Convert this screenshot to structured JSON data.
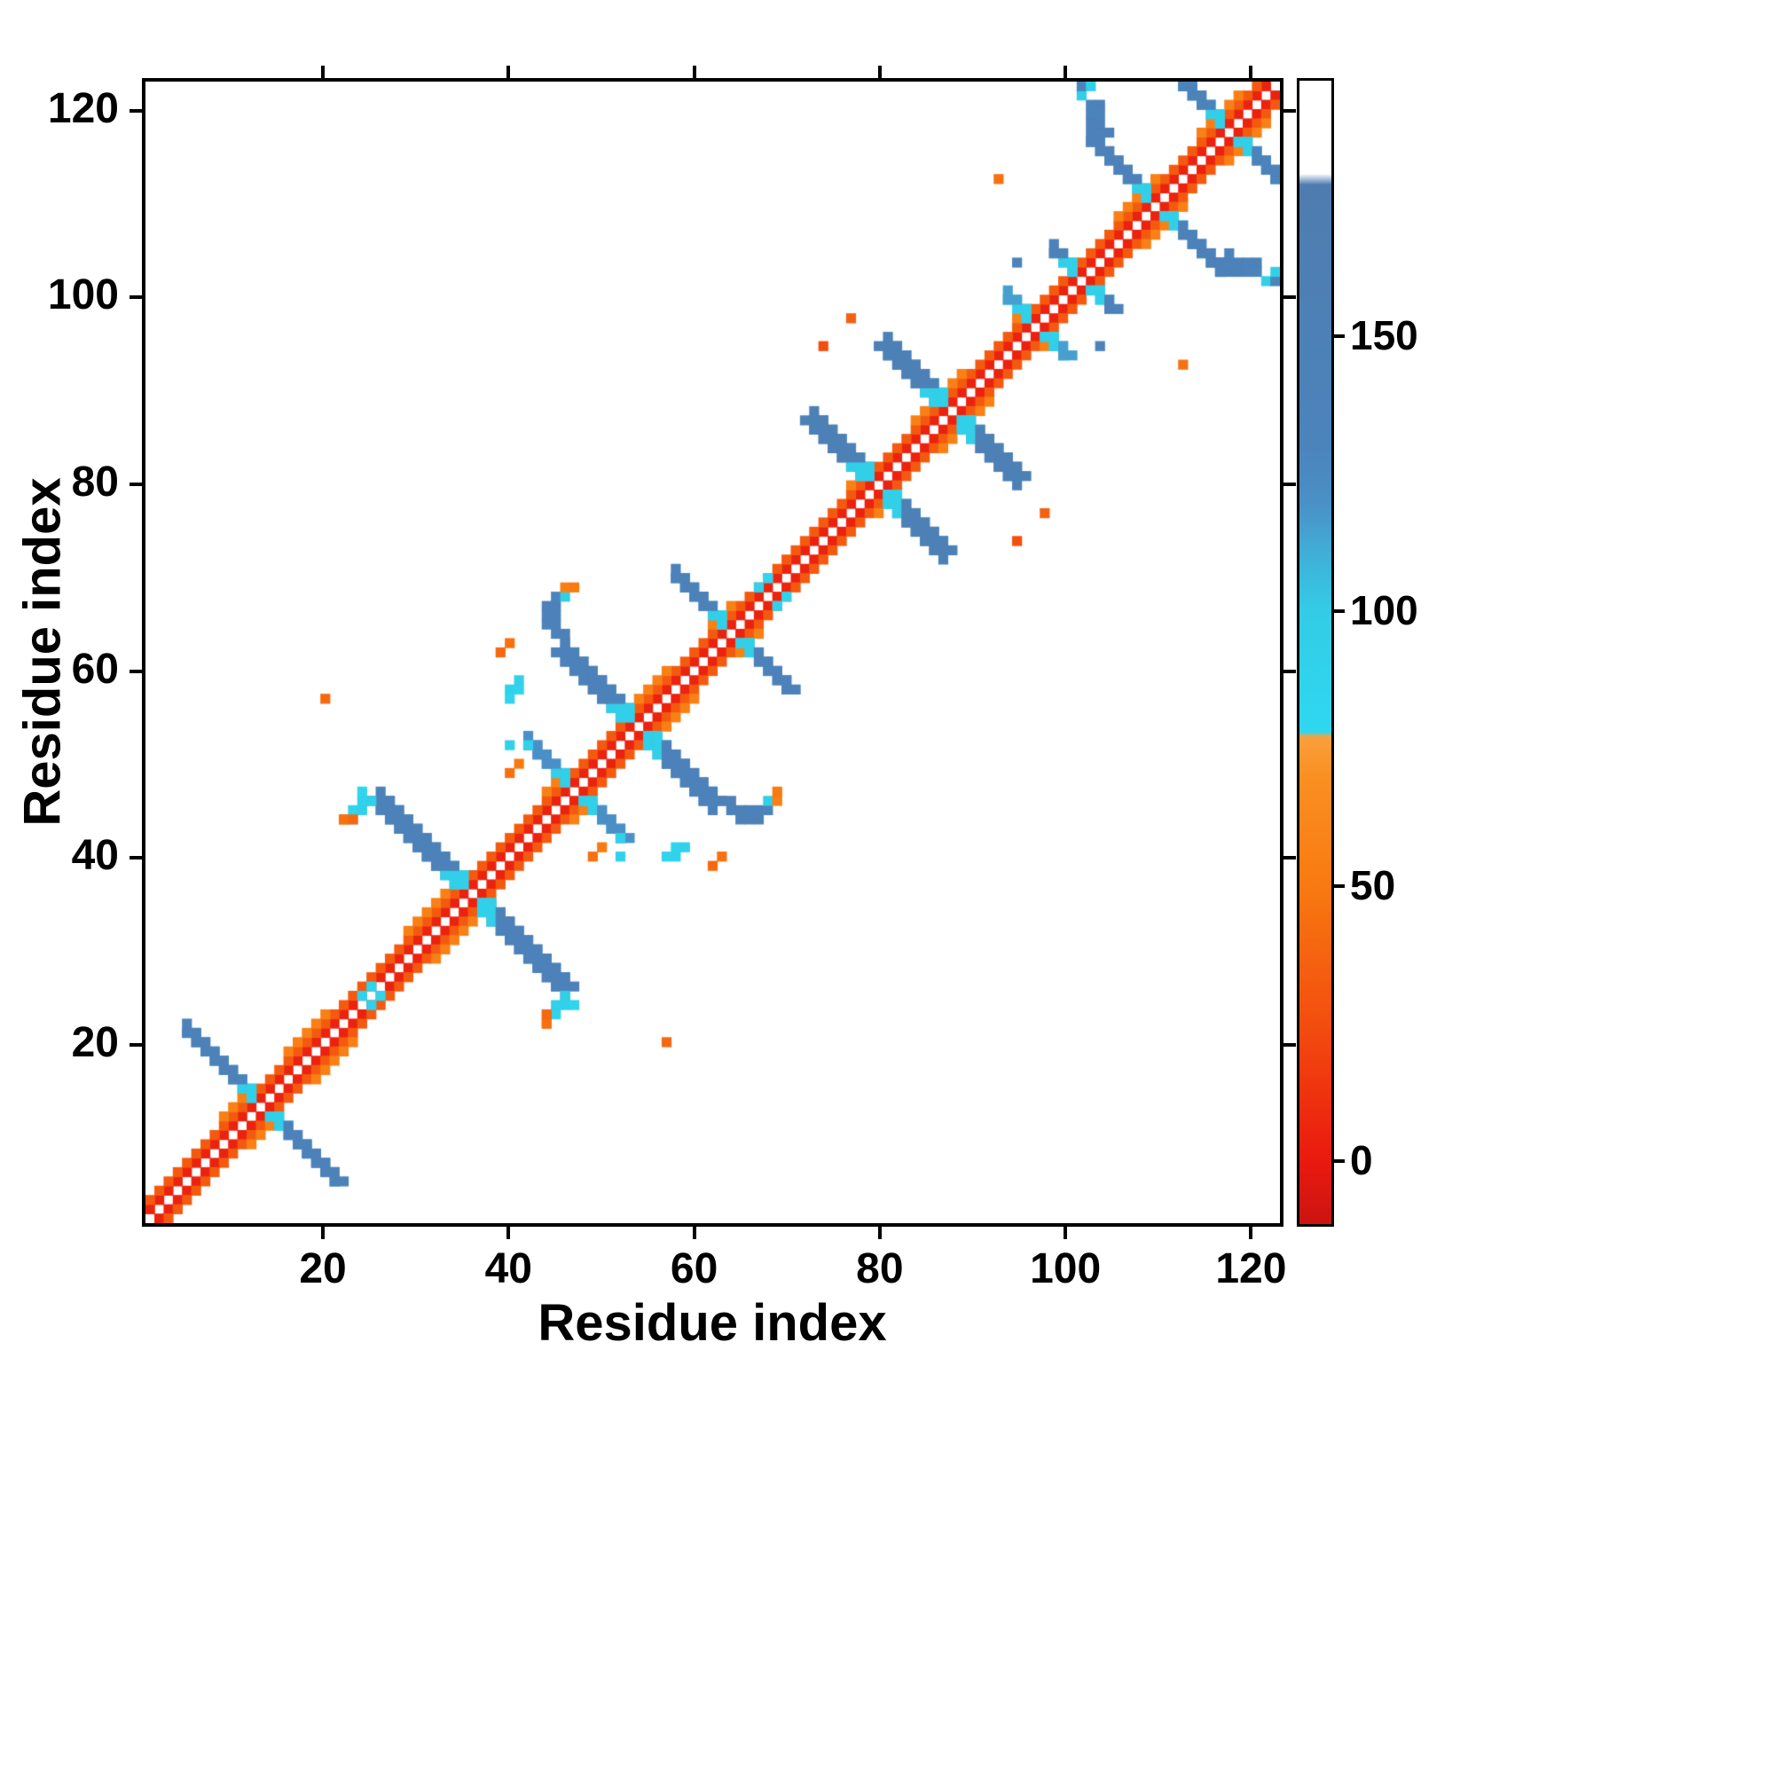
{
  "chart_data": {
    "type": "heatmap",
    "title": "",
    "xlabel": "Residue index",
    "ylabel": "Residue index",
    "x_range": [
      1,
      123
    ],
    "y_range": [
      1,
      123
    ],
    "x_ticks": [
      20,
      40,
      60,
      80,
      100,
      120
    ],
    "y_ticks": [
      20,
      40,
      60,
      80,
      100,
      120
    ],
    "grid": false,
    "legend": "colorbar-right",
    "colorbar": {
      "ticks": [
        0,
        50,
        100,
        150
      ],
      "vmin": -12,
      "vmax": 197,
      "stops": [
        [
          -12,
          "#cc1410"
        ],
        [
          0,
          "#ea1a0f"
        ],
        [
          25,
          "#f34e0f"
        ],
        [
          50,
          "#f87a10"
        ],
        [
          70,
          "#fa9022"
        ],
        [
          77,
          "#fa9f3c"
        ],
        [
          78,
          "#2fd7f0"
        ],
        [
          100,
          "#33cce6"
        ],
        [
          110,
          "#3fb0d8"
        ],
        [
          120,
          "#4a90c6"
        ],
        [
          130,
          "#4b84bb"
        ],
        [
          178,
          "#4f7cb0"
        ],
        [
          180,
          "#ffffff"
        ],
        [
          197,
          "#ffffff"
        ]
      ]
    },
    "matrix": {
      "symmetric": true,
      "cross_inner_value": 95,
      "diagonal": {
        "offset1_value": 4,
        "offset2_value": 32,
        "offset3_value": 55,
        "offset3_ranges": [
          [
            9,
            14
          ],
          [
            16,
            23
          ],
          [
            29,
            38
          ],
          [
            44,
            48
          ],
          [
            52,
            60
          ],
          [
            62,
            67
          ],
          [
            77,
            82
          ],
          [
            84,
            92
          ],
          [
            95,
            99
          ],
          [
            101,
            103
          ],
          [
            106,
            113
          ],
          [
            115,
            122
          ]
        ]
      },
      "crosses": [
        {
          "center": 13,
          "half": 8,
          "width": 2,
          "value": 140
        },
        {
          "center": 36,
          "half": 10,
          "width": 3,
          "value": 140
        },
        {
          "center": 47,
          "half": 5,
          "width": 2,
          "value": 120
        },
        {
          "center": 54,
          "half": 8,
          "width": 3,
          "value": 140
        },
        {
          "center": 64,
          "half": 6,
          "width": 2,
          "value": 140
        },
        {
          "center": 80,
          "half": 7,
          "width": 3,
          "value": 150
        },
        {
          "center": 88,
          "half": 7,
          "width": 3,
          "value": 150
        },
        {
          "center": 97,
          "half": 3,
          "width": 2,
          "value": 115
        },
        {
          "center": 102,
          "half": 3,
          "width": 2,
          "value": 140
        },
        {
          "center": 110,
          "half": 7,
          "width": 2,
          "value": 140
        },
        {
          "center": 118,
          "half": 6,
          "width": 2,
          "value": 135
        }
      ],
      "cells": [
        [
          63,
          46,
          140
        ],
        [
          64,
          45,
          140
        ],
        [
          64,
          46,
          148
        ],
        [
          65,
          44,
          140
        ],
        [
          65,
          45,
          148
        ],
        [
          66,
          44,
          140
        ],
        [
          66,
          45,
          140
        ],
        [
          67,
          44,
          148
        ],
        [
          67,
          45,
          140
        ],
        [
          68,
          45,
          132
        ],
        [
          68,
          46,
          95
        ],
        [
          69,
          46,
          55
        ],
        [
          69,
          47,
          50
        ],
        [
          117,
          104,
          140
        ],
        [
          118,
          104,
          136
        ],
        [
          118,
          105,
          140
        ],
        [
          119,
          103,
          140
        ],
        [
          119,
          104,
          140
        ],
        [
          120,
          103,
          136
        ],
        [
          120,
          104,
          132
        ],
        [
          121,
          103,
          130
        ],
        [
          121,
          104,
          140
        ],
        [
          122,
          102,
          95
        ],
        [
          123,
          102,
          130
        ],
        [
          123,
          103,
          95
        ],
        [
          44,
          23,
          90
        ],
        [
          45,
          23,
          85
        ],
        [
          45,
          24,
          92
        ],
        [
          46,
          24,
          90
        ],
        [
          46,
          25,
          95
        ],
        [
          47,
          24,
          85
        ],
        [
          44,
          22,
          45
        ],
        [
          40,
          58,
          90
        ],
        [
          41,
          58,
          85
        ],
        [
          41,
          59,
          92
        ],
        [
          40,
          57,
          85
        ],
        [
          24,
          25,
          90
        ],
        [
          25,
          26,
          85
        ],
        [
          67,
          69,
          90
        ],
        [
          68,
          70,
          85
        ],
        [
          20,
          57,
          40
        ],
        [
          22,
          44,
          45
        ],
        [
          23,
          44,
          40
        ],
        [
          63,
          40,
          45
        ],
        [
          62,
          39,
          40
        ],
        [
          49,
          40,
          45
        ],
        [
          50,
          41,
          50
        ],
        [
          52,
          42,
          90
        ],
        [
          52,
          40,
          90
        ],
        [
          74,
          95,
          25
        ],
        [
          77,
          98,
          35
        ],
        [
          93,
          113,
          45
        ],
        [
          104,
          95,
          135
        ]
      ]
    }
  }
}
